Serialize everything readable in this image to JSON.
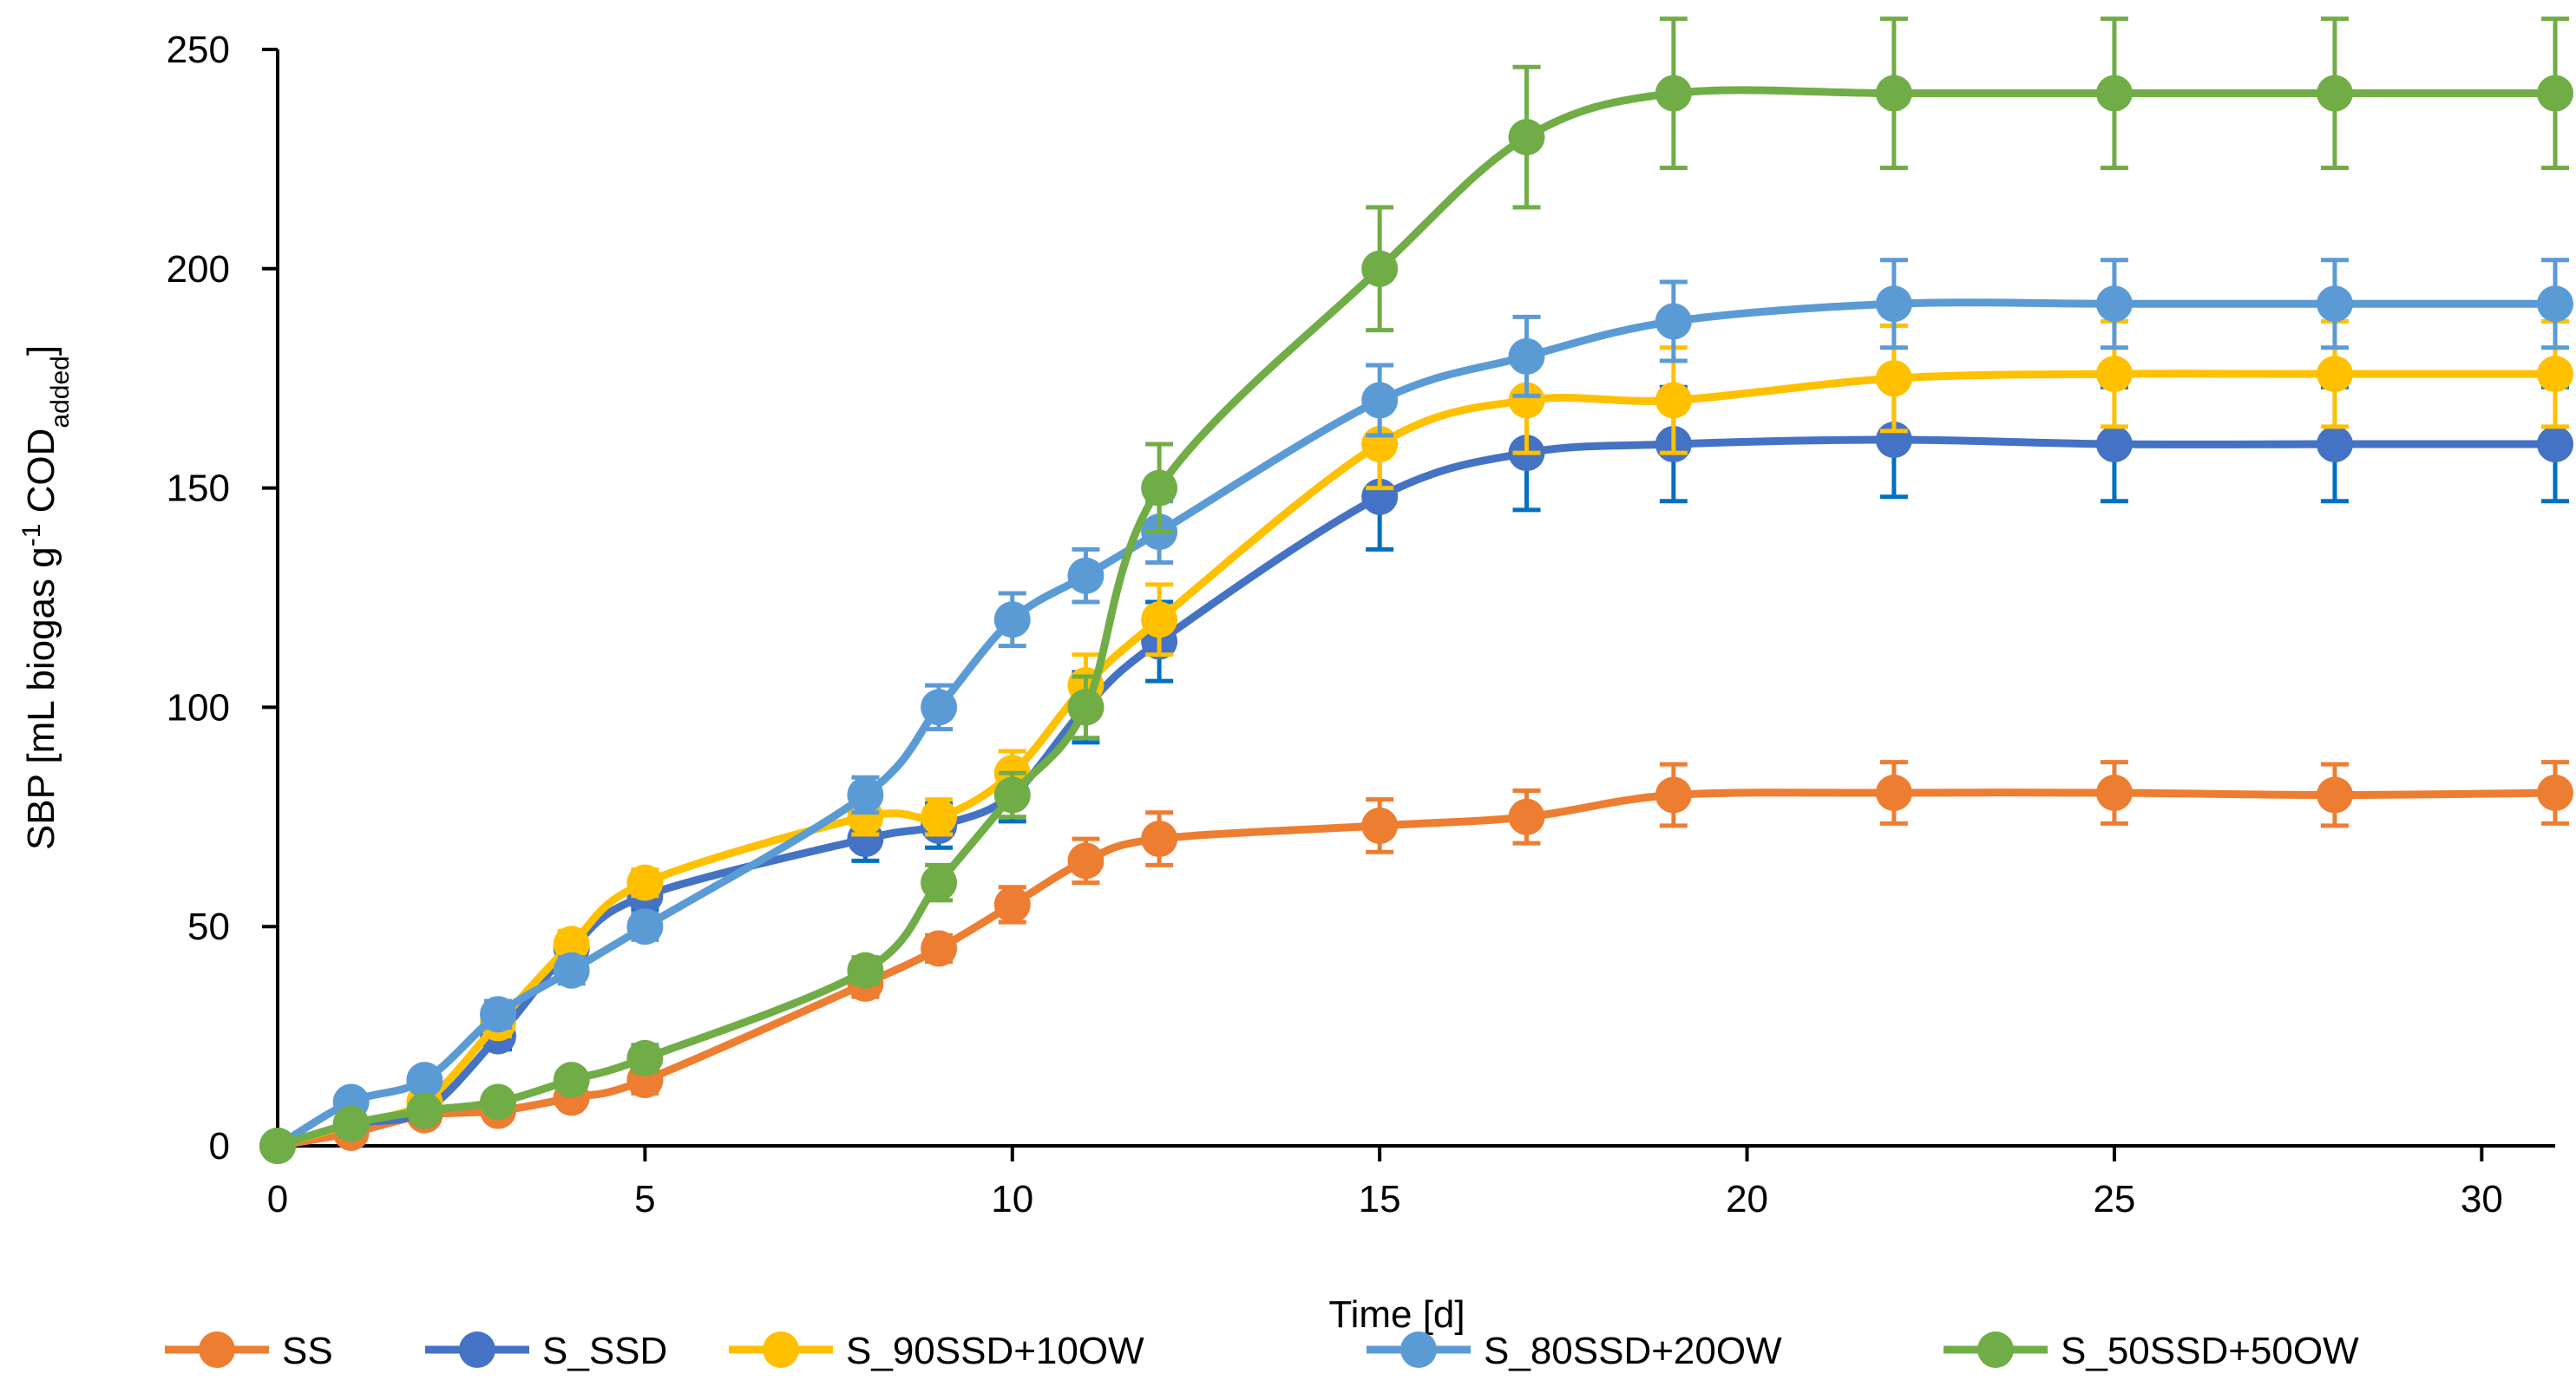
{
  "chart_data": {
    "type": "line",
    "title": "",
    "xlabel": "Time [d]",
    "ylabel": {
      "prefix": "SBP [mL biogas g",
      "sup": "-1",
      "middle": " COD",
      "sub": "added",
      "suffix": "]"
    },
    "xlim": [
      0,
      31
    ],
    "ylim": [
      0,
      250
    ],
    "xticks": [
      0,
      5,
      10,
      15,
      20,
      25,
      30
    ],
    "yticks": [
      0,
      50,
      100,
      150,
      200,
      250
    ],
    "grid": false,
    "legend_position": "bottom",
    "x": [
      0,
      1,
      2,
      3,
      4,
      5,
      8,
      9,
      10,
      11,
      12,
      15,
      17,
      19,
      22,
      25,
      28,
      31
    ],
    "series": [
      {
        "name": "SS",
        "color": "#ED7D31",
        "error_color": "#ED7D31",
        "values": [
          0,
          3,
          7,
          8,
          11,
          15,
          37,
          45,
          55,
          65,
          70,
          73,
          75,
          80,
          80.5,
          80.5,
          80,
          80.5
        ],
        "errors": [
          0,
          2,
          2,
          2,
          2,
          3,
          3,
          3,
          4,
          5,
          6,
          6,
          6,
          7,
          7,
          7,
          7,
          7
        ]
      },
      {
        "name": "S_SSD",
        "color": "#4472C4",
        "error_color": "#0070C0",
        "values": [
          0,
          5,
          8,
          25,
          45,
          57,
          70,
          73,
          80,
          100,
          115,
          148,
          158,
          160,
          161,
          160,
          160,
          160
        ],
        "errors": [
          0,
          2,
          2,
          3,
          3,
          3,
          5,
          5,
          6,
          8,
          9,
          12,
          13,
          13,
          13,
          13,
          13,
          13
        ]
      },
      {
        "name": "S_90SSD+10OW",
        "color": "#FFC000",
        "error_color": "#FFC000",
        "values": [
          0,
          5,
          10,
          28,
          46,
          60,
          75,
          75,
          85,
          105,
          120,
          160,
          170,
          170,
          175,
          176,
          176,
          176
        ],
        "errors": [
          0,
          2,
          2,
          3,
          3,
          3,
          4,
          4,
          5,
          7,
          8,
          10,
          12,
          12,
          12,
          12,
          12,
          12
        ]
      },
      {
        "name": "S_80SSD+20OW",
        "color": "#5B9BD5",
        "error_color": "#5B9BD5",
        "values": [
          0,
          10,
          15,
          30,
          40,
          50,
          80,
          100,
          120,
          130,
          140,
          170,
          180,
          188,
          192,
          192,
          192,
          192
        ],
        "errors": [
          0,
          2,
          2,
          3,
          3,
          3,
          4,
          5,
          6,
          6,
          7,
          8,
          9,
          9,
          10,
          10,
          10,
          10
        ]
      },
      {
        "name": "S_50SSD+50OW",
        "color": "#70AD47",
        "error_color": "#70AD47",
        "values": [
          0,
          5,
          8,
          10,
          15,
          20,
          40,
          60,
          80,
          100,
          150,
          200,
          230,
          240,
          240,
          240,
          240,
          240
        ],
        "errors": [
          0,
          2,
          2,
          2,
          2,
          3,
          3,
          4,
          5,
          7,
          10,
          14,
          16,
          17,
          17,
          17,
          17,
          17
        ]
      }
    ]
  }
}
